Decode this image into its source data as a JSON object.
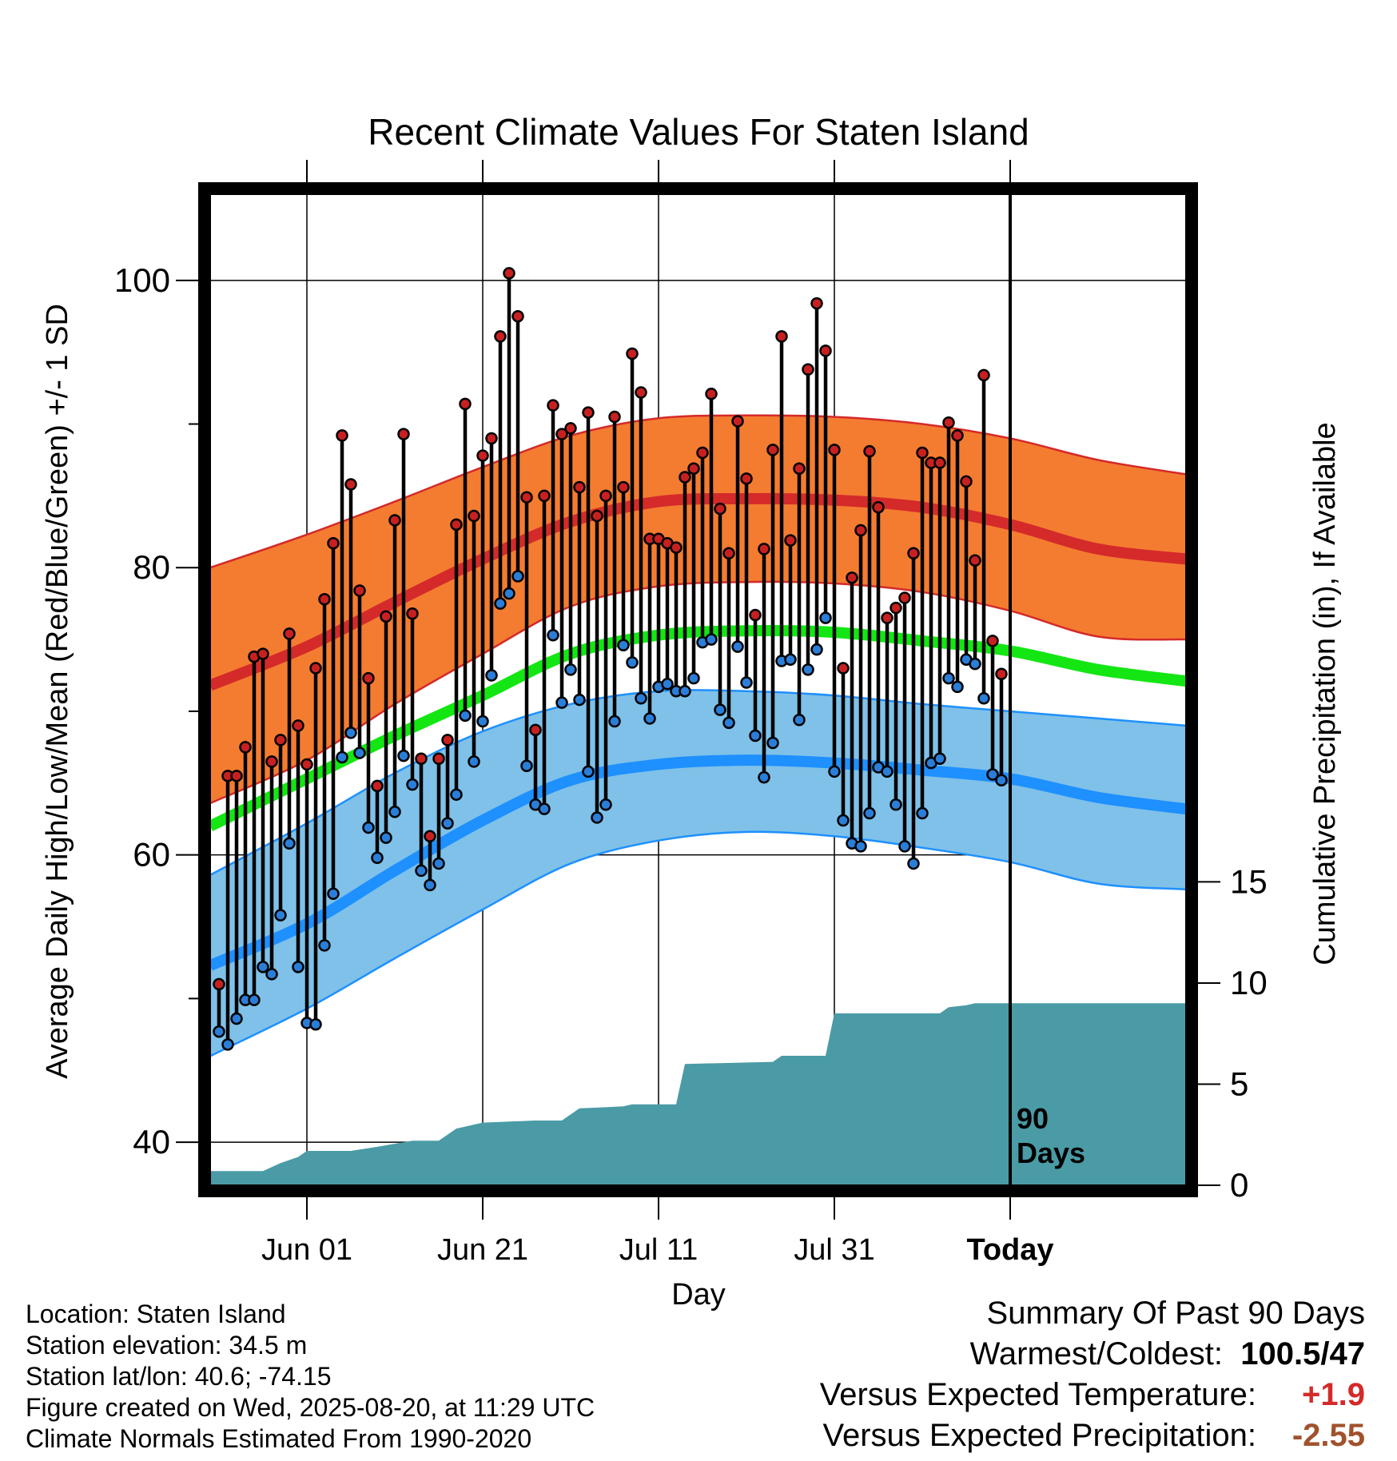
{
  "chart_data": {
    "type": "line",
    "title": "Recent Climate Values For Staten Island",
    "xlabel": "Day",
    "ylabel": "Average Daily High/Low/Mean (Red/Blue/Green) +/- 1 SD",
    "y2label": "Cumulative Precipitation (in), If Available",
    "x_tick_labels": [
      "Jun 01",
      "Jun 21",
      "Jul 11",
      "Jul 31",
      "Today"
    ],
    "y_tick_labels": [
      "40",
      "60",
      "80",
      "100"
    ],
    "y2_tick_labels": [
      "0",
      "5",
      "10",
      "15"
    ],
    "ylim": [
      37,
      106
    ],
    "y2lim": [
      0,
      49
    ],
    "xlim": [
      "2025-05-21",
      "2025-09-09"
    ],
    "period_label": [
      "90",
      "Days"
    ],
    "today": "2025-08-20",
    "first_day": "2025-05-22",
    "normals": {
      "high": {
        "x": [
          "2025-05-21",
          "2025-06-01",
          "2025-06-11",
          "2025-06-21",
          "2025-07-01",
          "2025-07-11",
          "2025-07-21",
          "2025-07-31",
          "2025-08-10",
          "2025-08-20",
          "2025-08-30",
          "2025-09-09"
        ],
        "mean": [
          71.8,
          74.5,
          77.6,
          80.6,
          83.2,
          84.6,
          84.8,
          84.7,
          84.2,
          83.0,
          81.3,
          80.6
        ],
        "upper": [
          80.0,
          82.3,
          84.6,
          87.0,
          89.2,
          90.4,
          90.6,
          90.5,
          90.0,
          89.0,
          87.5,
          86.5
        ],
        "lower": [
          63.6,
          66.6,
          70.5,
          74.0,
          77.3,
          78.7,
          79.0,
          78.9,
          78.3,
          77.0,
          75.2,
          75.0
        ]
      },
      "mean": {
        "x": [
          "2025-05-21",
          "2025-06-01",
          "2025-06-11",
          "2025-06-21",
          "2025-07-01",
          "2025-07-11",
          "2025-07-21",
          "2025-07-31",
          "2025-08-10",
          "2025-08-20",
          "2025-08-30",
          "2025-09-09"
        ],
        "values": [
          62.0,
          65.3,
          68.3,
          71.1,
          74.0,
          75.3,
          75.6,
          75.5,
          74.9,
          74.2,
          72.9,
          72.1
        ]
      },
      "low": {
        "x": [
          "2025-05-21",
          "2025-06-01",
          "2025-06-11",
          "2025-06-21",
          "2025-07-01",
          "2025-07-11",
          "2025-07-21",
          "2025-07-31",
          "2025-08-10",
          "2025-08-20",
          "2025-08-30",
          "2025-09-09"
        ],
        "mean": [
          52.3,
          55.2,
          58.9,
          62.4,
          65.2,
          66.3,
          66.6,
          66.4,
          65.9,
          65.3,
          64.0,
          63.2
        ],
        "upper": [
          58.6,
          62.2,
          65.7,
          68.6,
          70.5,
          71.4,
          71.4,
          71.1,
          70.5,
          70.0,
          69.5,
          69.0
        ],
        "lower": [
          46.0,
          49.3,
          52.8,
          56.2,
          59.4,
          61.0,
          61.6,
          61.3,
          60.5,
          59.5,
          58.0,
          57.6
        ]
      }
    },
    "series": [
      {
        "name": "High",
        "color": "#d42a2a",
        "values": [
          51,
          65.5,
          65.5,
          67.5,
          73.8,
          74,
          66.5,
          68,
          75.4,
          69,
          66.3,
          73,
          77.8,
          81.7,
          89.2,
          85.8,
          78.4,
          72.3,
          64.8,
          76.6,
          83.3,
          89.3,
          76.8,
          66.7,
          61.3,
          66.7,
          68,
          83,
          91.4,
          83.6,
          87.8,
          89,
          96.1,
          100.5,
          97.5,
          84.9,
          68.7,
          85,
          91.3,
          89.3,
          89.7,
          85.6,
          90.8,
          83.6,
          85,
          90.5,
          85.6,
          94.9,
          92.2,
          82,
          82,
          81.7,
          81.4,
          86.3,
          86.9,
          88,
          92.1,
          84.1,
          81,
          90.2,
          86.2,
          76.7,
          81.3,
          88.2,
          96.1,
          81.9,
          86.9,
          93.8,
          98.4,
          95.1,
          88.2,
          73,
          79.3,
          82.6,
          88.1,
          84.2,
          76.5,
          77.2,
          77.9,
          81,
          88,
          87.3,
          87.3,
          90.1,
          89.2,
          86,
          80.5,
          93.4,
          74.9,
          72.6
        ]
      },
      {
        "name": "Low",
        "color": "#2186e0",
        "values": [
          47.7,
          46.8,
          48.6,
          49.9,
          49.9,
          52.2,
          51.7,
          55.8,
          60.8,
          52.2,
          48.3,
          48.2,
          53.7,
          57.3,
          66.8,
          68.5,
          67.1,
          61.9,
          59.8,
          61.2,
          63,
          66.9,
          64.9,
          58.9,
          57.9,
          59.4,
          62.2,
          64.2,
          69.7,
          66.5,
          69.3,
          72.5,
          77.5,
          78.2,
          79.4,
          66.2,
          63.5,
          63.2,
          75.3,
          70.6,
          72.9,
          70.8,
          65.8,
          62.6,
          63.5,
          69.3,
          74.6,
          73.4,
          70.9,
          69.5,
          71.7,
          71.9,
          71.4,
          71.4,
          72.3,
          74.8,
          75,
          70.1,
          69.2,
          74.5,
          72,
          68.3,
          65.4,
          67.8,
          73.5,
          73.6,
          69.4,
          72.9,
          74.3,
          76.5,
          65.8,
          62.4,
          60.8,
          60.6,
          62.9,
          66.1,
          65.8,
          63.5,
          60.6,
          59.4,
          62.9,
          66.4,
          66.7,
          72.3,
          71.7,
          73.6,
          73.3,
          70.9,
          65.6,
          65.2
        ]
      }
    ],
    "precipitation": {
      "x": [
        "2025-05-21",
        "2025-05-27",
        "2025-05-29",
        "2025-05-31",
        "2025-06-01",
        "2025-06-06",
        "2025-06-09",
        "2025-06-13",
        "2025-06-16",
        "2025-06-18",
        "2025-06-21",
        "2025-06-27",
        "2025-06-30",
        "2025-07-02",
        "2025-07-07",
        "2025-07-08",
        "2025-07-13",
        "2025-07-14",
        "2025-07-24",
        "2025-07-25",
        "2025-07-30",
        "2025-07-31",
        "2025-08-12",
        "2025-08-13",
        "2025-08-15",
        "2025-08-16",
        "2025-09-09"
      ],
      "values": [
        0.7,
        0.7,
        1.1,
        1.4,
        1.7,
        1.7,
        1.9,
        2.2,
        2.2,
        2.8,
        3.1,
        3.2,
        3.2,
        3.8,
        3.9,
        4.0,
        4.0,
        6.0,
        6.1,
        6.4,
        6.4,
        8.5,
        8.5,
        8.8,
        8.9,
        9.0,
        9.0
      ]
    }
  },
  "footer": {
    "location": "Location: Staten Island",
    "elevation": "Station elevation: 34.5 m",
    "latlon": "Station lat/lon: 40.6; -74.15",
    "created": "Figure created on Wed, 2025-08-20, at 11:29 UTC",
    "normals": "Climate Normals Estimated From 1990-2020"
  },
  "summary": {
    "title": "Summary Of Past 90 Days",
    "warmest_label": "Warmest/Coldest:",
    "warmest_value": "100.5/47",
    "temp_label": "Versus Expected Temperature:",
    "temp_value": "+1.9",
    "temp_color": "#d42a2a",
    "precip_label": "Versus Expected Precipitation:",
    "precip_value": "-2.55",
    "precip_color": "#a0522d"
  },
  "colors": {
    "high_band": "#f47c30",
    "high_line": "#d42a2a",
    "low_band": "#7fc1e8",
    "low_line": "#1e90ff",
    "mean_line": "#14e614",
    "precip_fill": "#4a9ba5",
    "high_dot": "#c82020",
    "low_dot": "#2a7ed8"
  }
}
